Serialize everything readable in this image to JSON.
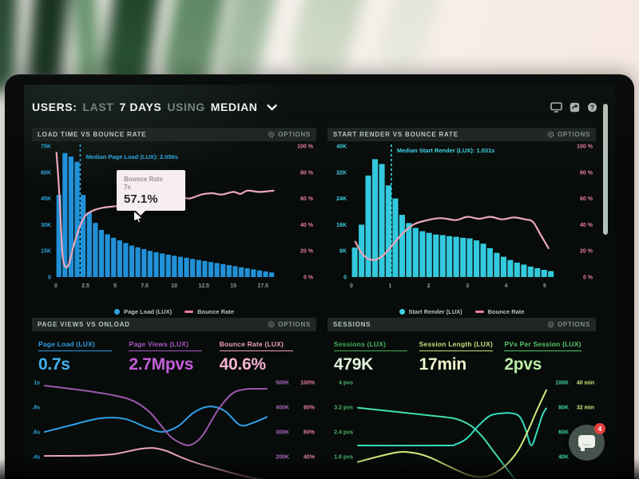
{
  "header": {
    "segments": [
      {
        "text": "USERS:"
      },
      {
        "text": "LAST"
      },
      {
        "text": "7 DAYS"
      },
      {
        "text": "USING"
      },
      {
        "text": "MEDIAN"
      }
    ],
    "icons": [
      "monitor-icon",
      "share-icon",
      "help-icon"
    ]
  },
  "panels": {
    "load_time": {
      "title": "LOAD TIME VS BOUNCE RATE",
      "options": "OPTIONS"
    },
    "start_render": {
      "title": "START RENDER VS BOUNCE RATE",
      "options": "OPTIONS"
    },
    "page_views": {
      "title": "PAGE VIEWS VS ONLOAD",
      "options": "OPTIONS",
      "metrics": [
        {
          "label": "Page Load (LUX)",
          "value": "0.7s",
          "color": "#2e9fe8",
          "value_color": "#41b2f0"
        },
        {
          "label": "Page Views (LUX)",
          "value": "2.7Mpvs",
          "color": "#a958c4",
          "value_color": "#c45fd9"
        },
        {
          "label": "Bounce Rate (LUX)",
          "value": "40.6%",
          "color": "#eba0bd",
          "value_color": "#f6b3d0"
        }
      ]
    },
    "sessions": {
      "title": "SESSIONS",
      "options": "OPTIONS",
      "metrics": [
        {
          "label": "Sessions (LUX)",
          "value": "479K",
          "color": "#45b15c",
          "value_color": "#e2f4dc"
        },
        {
          "label": "Session Length (LUX)",
          "value": "17min",
          "color": "#c9de7c",
          "value_color": "#eef6cc"
        },
        {
          "label": "PVs Per Session (LUX)",
          "value": "2pvs",
          "color": "#58c76a",
          "value_color": "#b9eda4"
        }
      ]
    }
  },
  "chat": {
    "badge": "4"
  },
  "chart_data": [
    {
      "id": "load-time",
      "type": "bar",
      "title": "LOAD TIME VS BOUNCE RATE",
      "bar_series": {
        "name": "Page Load (LUX)",
        "color": "#2191d8",
        "unit": "K sessions",
        "bin_start": 0,
        "bin_width": 0.5,
        "values_k": [
          47,
          71,
          69,
          66,
          47,
          37,
          31,
          27,
          24.5,
          22.5,
          21,
          19.5,
          18,
          17,
          16,
          15,
          14.2,
          13.5,
          12.8,
          12.2,
          11.6,
          11,
          10.4,
          9.8,
          9.2,
          8.6,
          8,
          7.4,
          6.8,
          6.2,
          5.6,
          5,
          4.4,
          3.8,
          3.2,
          2.6
        ]
      },
      "line_series": {
        "name": "Bounce Rate",
        "color": "#eba6ba",
        "unit": "%",
        "points": [
          [
            0.05,
            95
          ],
          [
            0.3,
            62
          ],
          [
            0.55,
            18
          ],
          [
            0.8,
            8
          ],
          [
            1.1,
            10
          ],
          [
            1.5,
            24
          ],
          [
            2.0,
            38
          ],
          [
            2.5,
            47
          ],
          [
            3.2,
            51
          ],
          [
            4,
            53
          ],
          [
            5,
            54
          ],
          [
            6,
            55.5
          ],
          [
            7,
            57.1
          ],
          [
            8.2,
            58
          ],
          [
            9.5,
            60
          ],
          [
            10.5,
            61
          ],
          [
            11.3,
            60
          ],
          [
            12.3,
            63
          ],
          [
            13.2,
            64
          ],
          [
            14,
            63
          ],
          [
            15,
            65
          ],
          [
            15.6,
            63.5
          ],
          [
            16.2,
            66
          ],
          [
            17.2,
            65
          ],
          [
            18.4,
            66
          ]
        ]
      },
      "x_axis": {
        "domain": [
          0,
          18.5
        ],
        "ticks": [
          0,
          2.5,
          5,
          7.5,
          10,
          12.5,
          15,
          17.5
        ],
        "unit": "seconds"
      },
      "y_left": {
        "labels": [
          "75K",
          "60K",
          "45K",
          "30K",
          "15K",
          "0"
        ],
        "color": "#2ea6e0"
      },
      "y_right": {
        "labels": [
          "100 %",
          "80 %",
          "60 %",
          "40 %",
          "20 %",
          "0 %"
        ],
        "color": "#e87f9e"
      },
      "median": {
        "label": "Median Page Load (LUX): 2.056s",
        "x": 2.056,
        "color": "#2ea6e0"
      },
      "tooltip": {
        "title": "Bounce Rate",
        "sub": "7s",
        "value": "57.1%",
        "x": 7,
        "pct": 57.1
      },
      "legend": [
        {
          "swatch": "dot",
          "color": "#2ea6e0",
          "label": "Page Load (LUX)"
        },
        {
          "swatch": "line",
          "color": "#e87f9e",
          "label": "Bounce Rate"
        }
      ]
    },
    {
      "id": "start-render",
      "type": "bar",
      "title": "START RENDER VS BOUNCE RATE",
      "bar_series": {
        "name": "Start Render (LUX)",
        "color": "#33c9de",
        "unit": "K sessions",
        "bin_start": 0.08,
        "bin_width": 0.163,
        "values_k": [
          9,
          16,
          31,
          36,
          34.5,
          28,
          24,
          19,
          16.5,
          15,
          14,
          13.5,
          13,
          12.8,
          12.5,
          12.3,
          12,
          11.8,
          11.2,
          10.2,
          8.8,
          7.4,
          6.2,
          5.2,
          4.4,
          3.8,
          3.2,
          2.7,
          2.2,
          1.8
        ]
      },
      "line_series": {
        "name": "Bounce Rate",
        "color": "#eba6ba",
        "unit": "%",
        "points": [
          [
            0.1,
            27
          ],
          [
            0.3,
            17
          ],
          [
            0.55,
            13
          ],
          [
            0.8,
            16
          ],
          [
            1.05,
            24
          ],
          [
            1.35,
            34
          ],
          [
            1.6,
            40
          ],
          [
            1.9,
            43
          ],
          [
            2.3,
            45
          ],
          [
            2.7,
            43.5
          ],
          [
            3.0,
            46
          ],
          [
            3.3,
            44.5
          ],
          [
            3.6,
            46
          ],
          [
            3.9,
            44
          ],
          [
            4.2,
            45.5
          ],
          [
            4.5,
            44
          ],
          [
            4.7,
            42
          ],
          [
            4.9,
            32
          ],
          [
            5.1,
            22
          ]
        ]
      },
      "x_axis": {
        "domain": [
          0,
          5.25
        ],
        "ticks": [
          0,
          1,
          2,
          3,
          4,
          5
        ],
        "unit": "seconds"
      },
      "y_left": {
        "labels": [
          "40K",
          "32K",
          "24K",
          "16K",
          "8K",
          "0"
        ],
        "color": "#3fd2e6"
      },
      "y_right": {
        "labels": [
          "100 %",
          "80 %",
          "60 %",
          "40 %",
          "20 %",
          "0 %"
        ],
        "color": "#e87f9e"
      },
      "median": {
        "label": "Median Start Render (LUX): 1.031s",
        "x": 1.031,
        "color": "#3fd2e6"
      },
      "legend": [
        {
          "swatch": "dot",
          "color": "#3fd2e6",
          "label": "Start Render (LUX)"
        },
        {
          "swatch": "line",
          "color": "#e87f9e",
          "label": "Bounce Rate"
        }
      ]
    },
    {
      "id": "pageviews-onload",
      "type": "line",
      "title": "PAGE VIEWS VS ONLOAD",
      "axes": {
        "seconds": [
          1.0,
          0.4
        ],
        "k": [
          500,
          200
        ],
        "pct": [
          100,
          40
        ]
      },
      "y_left": {
        "labels": [
          "1s",
          "0.8s",
          "0.6s",
          "0.4s"
        ],
        "color": "#2ea6e0"
      },
      "y_right": {
        "pairs": [
          [
            "500K",
            "100%"
          ],
          [
            "400K",
            "80%"
          ],
          [
            "300K",
            "60%"
          ],
          [
            "200K",
            "40%"
          ]
        ],
        "k_color": "#a86bc0",
        "pct_color": "#e87f9e"
      },
      "series": [
        {
          "name": "Page Load (LUX)",
          "axis": "seconds",
          "color": "#2e9fe8",
          "points": [
            [
              0,
              0.6
            ],
            [
              12,
              0.655
            ],
            [
              25,
              0.71
            ],
            [
              36,
              0.705
            ],
            [
              46,
              0.635
            ],
            [
              53,
              0.6
            ],
            [
              60,
              0.645
            ],
            [
              67,
              0.755
            ],
            [
              74,
              0.805
            ],
            [
              81,
              0.77
            ],
            [
              88,
              0.655
            ],
            [
              94,
              0.675
            ],
            [
              100,
              0.72
            ]
          ]
        },
        {
          "name": "Page Views (LUX)",
          "axis": "k",
          "color": "#9c59ad",
          "points": [
            [
              0,
              487
            ],
            [
              17,
              468
            ],
            [
              31,
              448
            ],
            [
              40,
              425
            ],
            [
              47,
              382
            ],
            [
              52,
              330
            ],
            [
              57,
              278
            ],
            [
              62,
              252
            ],
            [
              66,
              248
            ],
            [
              71,
              285
            ],
            [
              78,
              388
            ],
            [
              84,
              452
            ],
            [
              90,
              472
            ],
            [
              100,
              474
            ]
          ]
        },
        {
          "name": "Bounce Rate (LUX)",
          "axis": "pct",
          "color": "#eba6b4",
          "points": [
            [
              0,
              40.6
            ],
            [
              18,
              40.8
            ],
            [
              31,
              42
            ],
            [
              42,
              46
            ],
            [
              49,
              47
            ],
            [
              55,
              44.5
            ],
            [
              62,
              39
            ],
            [
              70,
              34
            ],
            [
              78,
              30
            ],
            [
              86,
              26
            ],
            [
              93,
              23
            ],
            [
              100,
              21
            ]
          ]
        }
      ]
    },
    {
      "id": "sessions",
      "type": "line",
      "title": "SESSIONS",
      "axes": {
        "pvs": [
          4,
          1.6
        ],
        "k": [
          100,
          40
        ],
        "min": [
          40,
          16
        ]
      },
      "y_left": {
        "labels": [
          "4 pvs",
          "3.2 pvs",
          "2.4 pvs",
          "1.6 pvs"
        ],
        "color": "#4db56a"
      },
      "y_right": {
        "pairs": [
          [
            "100K",
            "40 min"
          ],
          [
            "80K",
            "32 min"
          ],
          [
            "60K",
            "24 min"
          ],
          [
            "40K",
            ""
          ]
        ],
        "k_color": "#3fd2a8",
        "pct_color": "#cfe37a"
      },
      "series": [
        {
          "name": "PVs Per Session (LUX)",
          "axis": "pvs",
          "color": "#3fe0b4",
          "points": [
            [
              0,
              3.18
            ],
            [
              20,
              3.05
            ],
            [
              40,
              2.92
            ],
            [
              52,
              2.82
            ],
            [
              60,
              2.6
            ],
            [
              66,
              2.25
            ],
            [
              71,
              1.85
            ],
            [
              76,
              1.45
            ],
            [
              81,
              1.05
            ],
            [
              86,
              0.7
            ]
          ]
        },
        {
          "name": "Sessions (LUX)",
          "axis": "k",
          "color": "#35dcc0",
          "points": [
            [
              0,
              49
            ],
            [
              45,
              49
            ],
            [
              52,
              50
            ],
            [
              58,
              55
            ],
            [
              64,
              65
            ],
            [
              70,
              73
            ],
            [
              76,
              75
            ],
            [
              82,
              75
            ],
            [
              86,
              72
            ],
            [
              89,
              62
            ],
            [
              92,
              49
            ],
            [
              95,
              60
            ],
            [
              98,
              74
            ],
            [
              100,
              79
            ]
          ]
        },
        {
          "name": "Session Length (LUX)",
          "axis": "min",
          "color": "#d6e87e",
          "points": [
            [
              0,
              14.3
            ],
            [
              12,
              16.2
            ],
            [
              22,
              17.5
            ],
            [
              30,
              17.2
            ],
            [
              38,
              15.8
            ],
            [
              45,
              13.8
            ],
            [
              52,
              11.8
            ],
            [
              58,
              10.2
            ],
            [
              63,
              9.5
            ],
            [
              68,
              9.6
            ],
            [
              73,
              10.8
            ],
            [
              79,
              13.5
            ],
            [
              85,
              18
            ],
            [
              90,
              24
            ],
            [
              95,
              31
            ],
            [
              100,
              37.5
            ]
          ]
        }
      ]
    }
  ]
}
